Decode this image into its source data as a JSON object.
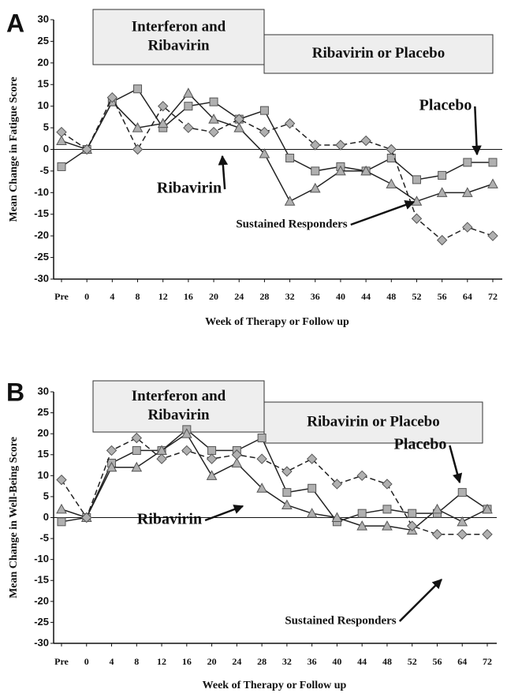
{
  "chart_data": [
    {
      "type": "line",
      "panel": "A",
      "ylabel": "Mean Change in Fatigue Score",
      "xlabel": "Week of Therapy or Follow up",
      "phases": [
        [
          "Interferon and",
          "Ribavirin"
        ],
        [
          "Ribavirin or Placebo"
        ]
      ],
      "categories": [
        "Pre",
        "0",
        "4",
        "8",
        "12",
        "16",
        "20",
        "24",
        "28",
        "32",
        "36",
        "40",
        "44",
        "48",
        "52",
        "56",
        "64",
        "72"
      ],
      "ylim": [
        -30,
        30
      ],
      "yticks": [
        -30,
        -25,
        -20,
        -15,
        -10,
        -5,
        0,
        5,
        10,
        15,
        20,
        25,
        30
      ],
      "series": [
        {
          "name": "Placebo",
          "color": "#b0b0b0",
          "marker": "square",
          "dashed": false,
          "values": [
            -4,
            0,
            11,
            14,
            5,
            10,
            11,
            7,
            9,
            -2,
            -5,
            -4,
            -5,
            -2,
            -7,
            -6,
            -3,
            -3
          ]
        },
        {
          "name": "Ribavirin",
          "color": "#b0b0b0",
          "marker": "triangle",
          "dashed": false,
          "values": [
            2,
            0,
            11,
            5,
            6,
            13,
            7,
            5,
            -1,
            -12,
            -9,
            -5,
            -5,
            -8,
            -12,
            -10,
            -10,
            -8
          ]
        },
        {
          "name": "Sustained Responders",
          "color": "#b0b0b0",
          "marker": "diamond",
          "dashed": true,
          "values": [
            4,
            0,
            12,
            0,
            10,
            5,
            4,
            7,
            4,
            6,
            1,
            1,
            2,
            0,
            -16,
            -21,
            -18,
            -20
          ]
        }
      ]
    },
    {
      "type": "line",
      "panel": "B",
      "ylabel": "Mean Change in Well-Being Score",
      "xlabel": "Week of Therapy or Follow up",
      "phases": [
        [
          "Interferon and",
          "Ribavirin"
        ],
        [
          "Ribavirin or Placebo"
        ]
      ],
      "categories": [
        "Pre",
        "0",
        "4",
        "8",
        "12",
        "16",
        "20",
        "24",
        "28",
        "32",
        "36",
        "40",
        "44",
        "48",
        "52",
        "56",
        "64",
        "72"
      ],
      "ylim": [
        -30,
        30
      ],
      "yticks": [
        -30,
        -25,
        -20,
        -15,
        -10,
        -5,
        0,
        5,
        10,
        15,
        20,
        25,
        30
      ],
      "series": [
        {
          "name": "Placebo",
          "color": "#b0b0b0",
          "marker": "square",
          "dashed": false,
          "values": [
            -1,
            0,
            13,
            16,
            16,
            21,
            16,
            16,
            19,
            6,
            7,
            -1,
            1,
            2,
            1,
            1,
            6,
            2
          ]
        },
        {
          "name": "Ribavirin",
          "color": "#b0b0b0",
          "marker": "triangle",
          "dashed": false,
          "values": [
            2,
            0,
            12,
            12,
            16,
            20,
            10,
            13,
            7,
            3,
            1,
            0,
            -2,
            -2,
            -3,
            2,
            -1,
            2
          ]
        },
        {
          "name": "Sustained Responders",
          "color": "#b0b0b0",
          "marker": "diamond",
          "dashed": true,
          "values": [
            9,
            0,
            16,
            19,
            14,
            16,
            14,
            15,
            14,
            11,
            14,
            8,
            10,
            8,
            -2,
            -4,
            -4,
            -4
          ]
        }
      ]
    }
  ]
}
